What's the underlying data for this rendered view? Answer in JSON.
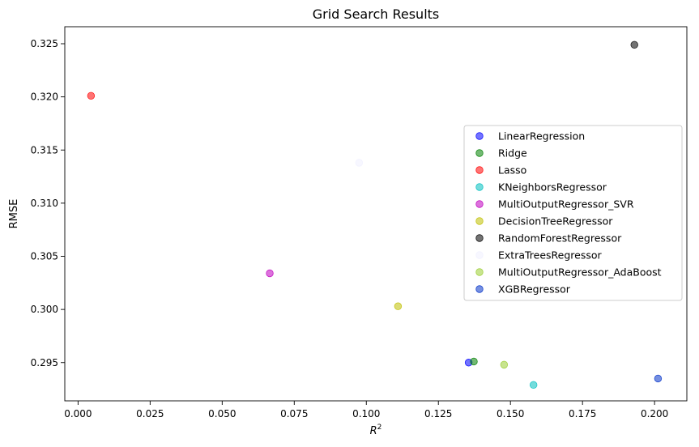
{
  "chart_data": {
    "type": "scatter",
    "title": "Grid Search Results",
    "xlabel_base": "R",
    "xlabel_sup": "2",
    "ylabel": "RMSE",
    "xlim": [
      -0.0046,
      0.2112
    ],
    "ylim": [
      0.2914,
      0.3266
    ],
    "xticks": [
      0.0,
      0.025,
      0.05,
      0.075,
      0.1,
      0.125,
      0.15,
      0.175,
      0.2
    ],
    "xtick_labels": [
      "0.000",
      "0.025",
      "0.050",
      "0.075",
      "0.100",
      "0.125",
      "0.150",
      "0.175",
      "0.200"
    ],
    "yticks": [
      0.295,
      0.3,
      0.305,
      0.31,
      0.315,
      0.32,
      0.325
    ],
    "ytick_labels": [
      "0.295",
      "0.300",
      "0.305",
      "0.310",
      "0.315",
      "0.320",
      "0.325"
    ],
    "grid": false,
    "legend_position": "center-right",
    "series": [
      {
        "name": "LinearRegression",
        "color": "#0000ff",
        "x": 0.1355,
        "y": 0.295
      },
      {
        "name": "Ridge",
        "color": "#008000",
        "x": 0.1373,
        "y": 0.2951
      },
      {
        "name": "Lasso",
        "color": "#ff0000",
        "x": 0.0045,
        "y": 0.3201
      },
      {
        "name": "KNeighborsRegressor",
        "color": "#00bfbf",
        "x": 0.158,
        "y": 0.2929
      },
      {
        "name": "MultiOutputRegressor_SVR",
        "color": "#bf00bf",
        "x": 0.0665,
        "y": 0.3034
      },
      {
        "name": "DecisionTreeRegressor",
        "color": "#bfbf00",
        "x": 0.111,
        "y": 0.3003
      },
      {
        "name": "RandomForestRegressor",
        "color": "#000000",
        "x": 0.193,
        "y": 0.3249
      },
      {
        "name": "ExtraTreesRegressor",
        "color": "#f0f0ff",
        "x": 0.0975,
        "y": 0.3138
      },
      {
        "name": "MultiOutputRegressor_AdaBoost",
        "color": "#9acd32",
        "x": 0.1478,
        "y": 0.2948
      },
      {
        "name": "XGBRegressor",
        "color": "#0433c8",
        "x": 0.2012,
        "y": 0.2935
      }
    ]
  }
}
